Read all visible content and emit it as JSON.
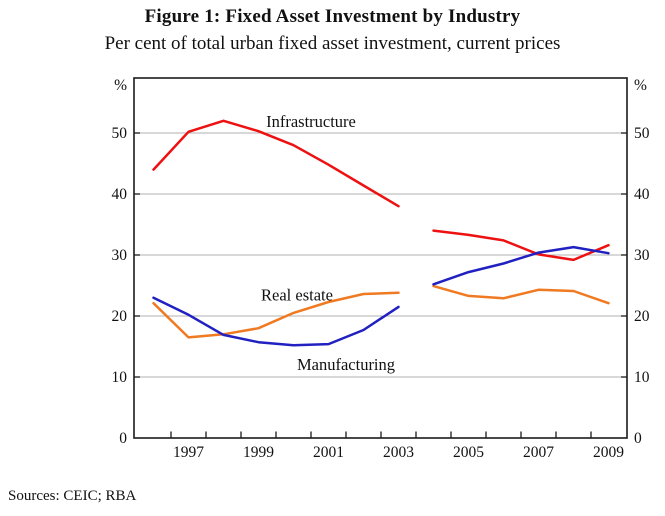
{
  "figure": {
    "title": "Figure 1: Fixed Asset Investment by Industry",
    "subtitle": "Per cent of total urban fixed asset investment, current prices",
    "source_note": "Sources: CEIC; RBA",
    "unit_symbol": "%"
  },
  "chart_data": {
    "type": "line",
    "title": "Figure 1: Fixed Asset Investment by Industry",
    "subtitle": "Per cent of total urban fixed asset investment, current prices",
    "x": [
      1996,
      1997,
      1998,
      1999,
      2000,
      2001,
      2002,
      2003,
      2004,
      2005,
      2006,
      2007,
      2008,
      2009
    ],
    "series": [
      {
        "name": "Infrastructure",
        "color": "#ee1111",
        "values": [
          44.0,
          50.2,
          52.0,
          50.3,
          48.0,
          44.8,
          41.4,
          38.0,
          34.0,
          33.3,
          32.4,
          30.1,
          29.2,
          31.6
        ],
        "label": {
          "x": 2000.5,
          "y": 51.8
        }
      },
      {
        "name": "Real estate",
        "color": "#f07a22",
        "values": [
          22.1,
          16.5,
          17.0,
          18.0,
          20.5,
          22.3,
          23.6,
          23.8,
          24.9,
          23.3,
          22.9,
          24.3,
          24.1,
          22.1
        ],
        "label": {
          "x": 2000.1,
          "y": 23.4
        }
      },
      {
        "name": "Manufacturing",
        "color": "#2121c2",
        "values": [
          23.0,
          20.2,
          16.9,
          15.7,
          15.2,
          15.4,
          17.7,
          21.5,
          25.2,
          27.2,
          28.6,
          30.4,
          31.3,
          30.3
        ],
        "label": {
          "x": 2001.5,
          "y": 12.0
        }
      }
    ],
    "break_after_year": 2003,
    "ylim": [
      0,
      59
    ],
    "yticks": [
      0,
      10,
      20,
      30,
      40,
      50
    ],
    "xtick_years": [
      1997,
      1998,
      1999,
      2000,
      2001,
      2002,
      2003,
      2004,
      2005,
      2006,
      2007,
      2008,
      2009
    ],
    "xtick_label_years": [
      1997,
      1999,
      2001,
      2003,
      2005,
      2007,
      2009
    ],
    "grid": "horizontal",
    "legend_position": "inline-labels",
    "axis_unit_left": "%",
    "axis_unit_right": "%"
  },
  "colors": {
    "frame": "#1a1a1a",
    "gridline": "#b0b0b0",
    "text": "#111111"
  }
}
